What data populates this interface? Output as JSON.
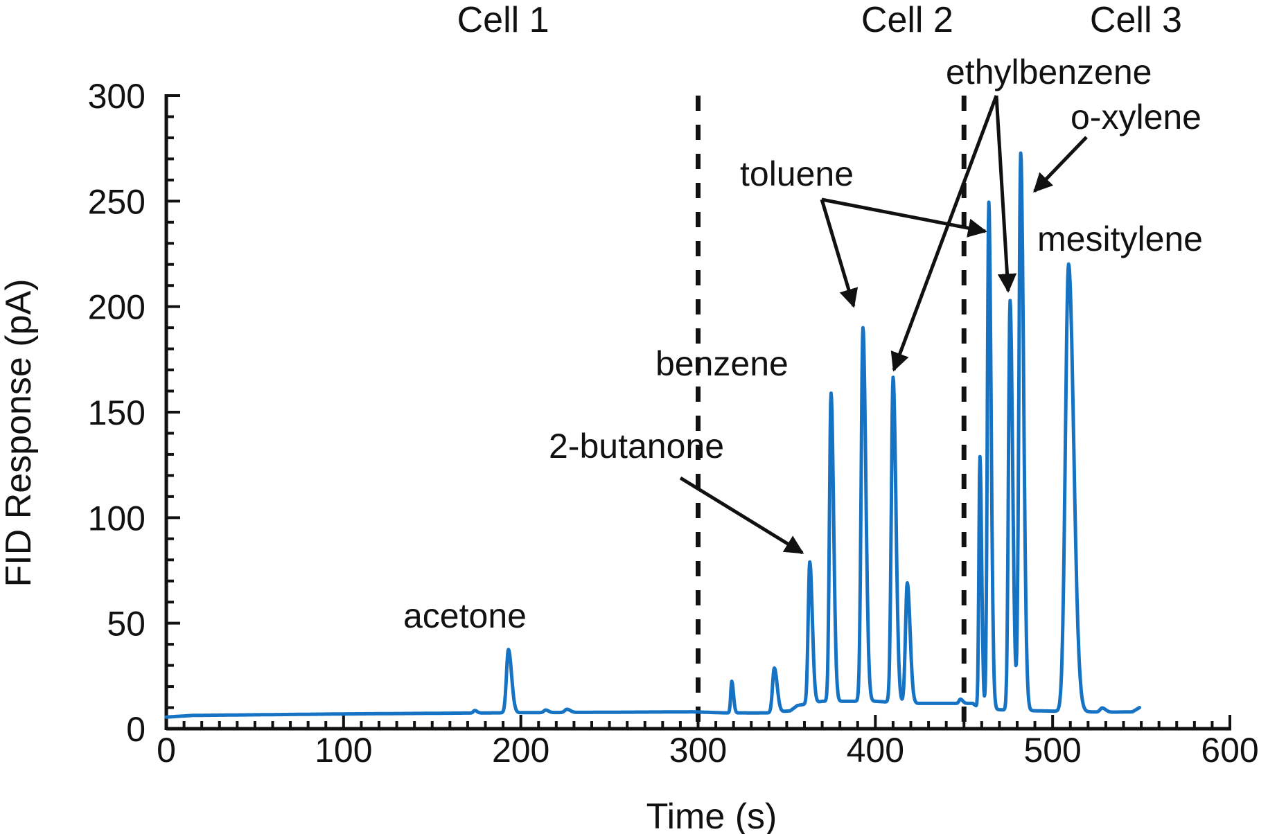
{
  "chart_data": {
    "type": "line",
    "title": "",
    "xlabel": "Time (s)",
    "ylabel": "FID Response (pA)",
    "xlim": [
      0,
      600
    ],
    "ylim": [
      0,
      300
    ],
    "xticks": [
      0,
      100,
      200,
      300,
      400,
      500,
      600
    ],
    "yticks": [
      0,
      50,
      100,
      150,
      200,
      250,
      300
    ],
    "grid": false,
    "line_color": "#1673c4",
    "baseline": [
      [
        0,
        5.5
      ],
      [
        15,
        6.3
      ],
      [
        100,
        7.0
      ],
      [
        150,
        7.3
      ],
      [
        200,
        7.6
      ],
      [
        250,
        7.8
      ],
      [
        297,
        8.0
      ],
      [
        315,
        7.5
      ],
      [
        340,
        7.5
      ],
      [
        352,
        8.5
      ],
      [
        356,
        11
      ],
      [
        370,
        13
      ],
      [
        400,
        13
      ],
      [
        420,
        12
      ],
      [
        445,
        12
      ],
      [
        455,
        12
      ],
      [
        458,
        10
      ],
      [
        470,
        9
      ],
      [
        490,
        8.5
      ],
      [
        520,
        8
      ],
      [
        530,
        7.8
      ],
      [
        545,
        8
      ],
      [
        549,
        10
      ]
    ],
    "peaks": [
      {
        "t": 174,
        "h": 1.2,
        "w": 0.8
      },
      {
        "t": 193,
        "h": 30,
        "w": 1.1
      },
      {
        "t": 214,
        "h": 1.2,
        "w": 1.0
      },
      {
        "t": 226,
        "h": 1.5,
        "w": 1.2
      },
      {
        "t": 319,
        "h": 15,
        "w": 0.6
      },
      {
        "t": 343,
        "h": 21,
        "w": 1.0
      },
      {
        "t": 363,
        "h": 67,
        "w": 0.9
      },
      {
        "t": 375,
        "h": 146,
        "w": 0.9
      },
      {
        "t": 393,
        "h": 177,
        "w": 1.0
      },
      {
        "t": 410,
        "h": 154,
        "w": 1.0
      },
      {
        "t": 418,
        "h": 57,
        "w": 1.0
      },
      {
        "t": 448,
        "h": 2,
        "w": 0.8
      },
      {
        "t": 459,
        "h": 119,
        "w": 0.6
      },
      {
        "t": 464,
        "h": 240,
        "w": 0.8
      },
      {
        "t": 476,
        "h": 194,
        "w": 0.9
      },
      {
        "t": 482,
        "h": 264,
        "w": 1.0
      },
      {
        "t": 509,
        "h": 212,
        "w": 1.8
      },
      {
        "t": 528,
        "h": 2,
        "w": 1.2
      }
    ],
    "dividers": [
      300,
      450
    ],
    "cells": [
      {
        "label": "Cell 1",
        "x": 190
      },
      {
        "label": "Cell 2",
        "x": 418
      },
      {
        "label": "Cell 3",
        "x": 547
      }
    ],
    "peak_labels": [
      {
        "name": "acetone",
        "text": "acetone"
      },
      {
        "name": "2-butanone",
        "text": "2-butanone"
      },
      {
        "name": "benzene",
        "text": "benzene"
      },
      {
        "name": "toluene",
        "text": "toluene"
      },
      {
        "name": "ethylbenzene",
        "text": "ethylbenzene"
      },
      {
        "name": "o-xylene",
        "text": "o-xylene"
      },
      {
        "name": "mesitylene",
        "text": "mesitylene"
      }
    ]
  }
}
